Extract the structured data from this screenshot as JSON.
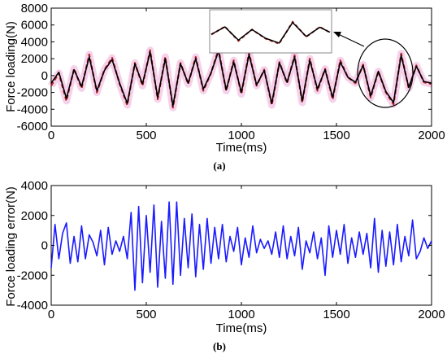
{
  "colors": {
    "reference": "#b22222",
    "actual": "#000000",
    "error": "#1a1aff",
    "band": "#f4c6e6"
  },
  "chart_data": [
    {
      "type": "line",
      "panel_caption": "(a)",
      "xlabel": "Time(ms)",
      "ylabel": "Force loading(N)",
      "xlim": [
        0,
        2000
      ],
      "ylim": [
        -6000,
        8000
      ],
      "xticks": [
        "0",
        "500",
        "1000",
        "1500",
        "2000"
      ],
      "yticks": [
        "-6000",
        "-4000",
        "-2000",
        "0",
        "2000",
        "4000",
        "6000",
        "8000"
      ],
      "grid": false,
      "inset": {
        "x_range": [
          1600,
          1950
        ],
        "style": "zoom-in",
        "magnified_region": "circled"
      },
      "series": [
        {
          "style": "dashed",
          "color": "#b22222",
          "x": [
            0,
            40,
            80,
            120,
            160,
            200,
            240,
            280,
            320,
            360,
            400,
            440,
            480,
            520,
            560,
            600,
            640,
            680,
            720,
            760,
            800,
            840,
            880,
            920,
            960,
            1000,
            1040,
            1080,
            1120,
            1160,
            1200,
            1240,
            1280,
            1320,
            1360,
            1400,
            1440,
            1480,
            1520,
            1560,
            1600,
            1640,
            1680,
            1720,
            1760,
            1800,
            1840,
            1880,
            1920,
            1960,
            2000
          ],
          "y": [
            -1200,
            300,
            -3000,
            800,
            -1500,
            2500,
            -2000,
            700,
            2100,
            -1000,
            -3500,
            1500,
            -1200,
            3000,
            -2800,
            2200,
            -3800,
            1500,
            -1000,
            2200,
            -1800,
            300,
            3100,
            -1800,
            1800,
            -2200,
            2700,
            -1200,
            700,
            -3500,
            1600,
            -900,
            2400,
            -3200,
            2000,
            -1800,
            800,
            -2800,
            1800,
            -200,
            -900,
            1300,
            -2600,
            500,
            -2000,
            -3400,
            2600,
            -1500,
            1200,
            -800,
            -1000
          ]
        },
        {
          "style": "solid",
          "color": "#000000",
          "x": [
            0,
            40,
            80,
            120,
            160,
            200,
            240,
            280,
            320,
            360,
            400,
            440,
            480,
            520,
            560,
            600,
            640,
            680,
            720,
            760,
            800,
            840,
            880,
            920,
            960,
            1000,
            1040,
            1080,
            1120,
            1160,
            1200,
            1240,
            1280,
            1320,
            1360,
            1400,
            1440,
            1480,
            1520,
            1560,
            1600,
            1640,
            1680,
            1720,
            1760,
            1800,
            1840,
            1880,
            1920,
            1960,
            2000
          ],
          "y": [
            -900,
            400,
            -2700,
            700,
            -1300,
            2200,
            -1800,
            600,
            1900,
            -900,
            -3300,
            1400,
            -1000,
            2800,
            -2600,
            2000,
            -3600,
            1400,
            -900,
            2000,
            -1600,
            300,
            2900,
            -1700,
            1600,
            -2000,
            2500,
            -1100,
            600,
            -3300,
            1500,
            -800,
            2200,
            -3000,
            1800,
            -1600,
            700,
            -2600,
            1600,
            -200,
            -800,
            1200,
            -2400,
            500,
            -1900,
            -3200,
            2400,
            -1400,
            1100,
            -700,
            -900
          ]
        }
      ]
    },
    {
      "type": "line",
      "panel_caption": "(b)",
      "xlabel": "Time(ms)",
      "ylabel": "Force loading error(N)",
      "xlim": [
        0,
        2000
      ],
      "ylim": [
        -4000,
        4000
      ],
      "xticks": [
        "0",
        "500",
        "1000",
        "1500",
        "2000"
      ],
      "yticks": [
        "-4000",
        "-2000",
        "0",
        "2000",
        "4000"
      ],
      "grid": false,
      "series": [
        {
          "style": "solid",
          "color": "#1a1aff",
          "x": [
            0,
            20,
            40,
            60,
            80,
            100,
            120,
            140,
            160,
            180,
            200,
            220,
            240,
            260,
            280,
            300,
            320,
            340,
            360,
            380,
            400,
            420,
            440,
            460,
            480,
            500,
            520,
            540,
            560,
            580,
            600,
            620,
            640,
            660,
            680,
            700,
            720,
            740,
            760,
            780,
            800,
            820,
            840,
            860,
            880,
            900,
            920,
            940,
            960,
            980,
            1000,
            1020,
            1040,
            1060,
            1080,
            1100,
            1120,
            1140,
            1160,
            1180,
            1200,
            1220,
            1240,
            1260,
            1280,
            1300,
            1320,
            1340,
            1360,
            1380,
            1400,
            1420,
            1440,
            1460,
            1480,
            1500,
            1520,
            1540,
            1560,
            1580,
            1600,
            1620,
            1640,
            1660,
            1680,
            1700,
            1720,
            1740,
            1760,
            1780,
            1800,
            1820,
            1840,
            1860,
            1880,
            1900,
            1920,
            1940,
            1960,
            1980,
            2000
          ],
          "y": [
            -1500,
            1400,
            -900,
            800,
            1500,
            -1200,
            600,
            -1100,
            1300,
            -900,
            700,
            200,
            -700,
            1000,
            -1300,
            1200,
            -600,
            300,
            -400,
            600,
            -900,
            2200,
            -3000,
            2600,
            -2500,
            2000,
            -1800,
            2700,
            -2800,
            1600,
            -2200,
            2900,
            -2600,
            2900,
            -2000,
            1800,
            -1500,
            2100,
            -2100,
            1400,
            -1600,
            1800,
            -1200,
            1200,
            -900,
            1400,
            -1100,
            600,
            -400,
            1200,
            -1300,
            500,
            -800,
            1300,
            -500,
            400,
            -200,
            300,
            -600,
            900,
            -800,
            1300,
            -900,
            600,
            -700,
            1200,
            -1600,
            300,
            -500,
            900,
            -900,
            500,
            -2000,
            1300,
            -800,
            1000,
            -600,
            1400,
            -1200,
            500,
            -800,
            900,
            -600,
            800,
            -1500,
            1800,
            -1800,
            1000,
            -1400,
            900,
            -1300,
            1400,
            -1100,
            600,
            -700,
            1700,
            -900,
            -400,
            500,
            -200,
            300
          ]
        }
      ]
    }
  ]
}
